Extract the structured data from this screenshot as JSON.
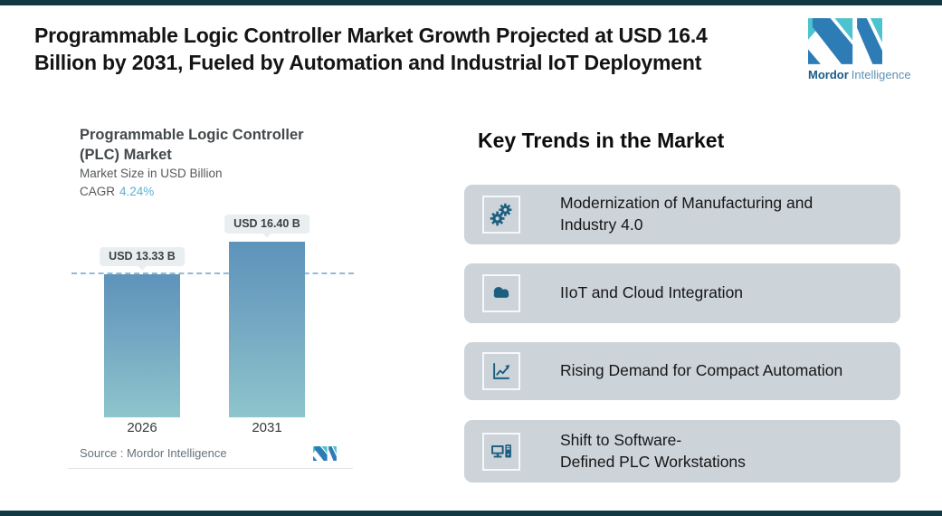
{
  "header": {
    "title": "Programmable Logic Controller Market Growth Projected at USD 16.4\nBillion by 2031, Fueled by Automation and Industrial IoT Deployment"
  },
  "brand": {
    "word_bold": "Mordor",
    "word_light": "Intelligence",
    "colors": {
      "blue": "#2e7cb5",
      "teal": "#4ec3d0"
    }
  },
  "chart": {
    "title": "Programmable Logic Controller\n(PLC) Market",
    "subtitle": "Market Size in USD Billion",
    "cagr_label": "CAGR",
    "cagr_value": "4.24%",
    "source": "Source :  Mordor Intelligence"
  },
  "chart_data": {
    "type": "bar",
    "title": "Programmable Logic Controller (PLC) Market",
    "subtitle": "Market Size in USD Billion",
    "cagr": "4.24%",
    "categories": [
      "2026",
      "2031"
    ],
    "values": [
      13.33,
      16.4
    ],
    "bar_labels": [
      "USD 13.33 B",
      "USD 16.40 B"
    ],
    "reference_line": 13.33,
    "unit": "USD Billion",
    "ylim": [
      0,
      16.4
    ],
    "grid": false,
    "legend": false,
    "bar_gradient_top": "#5e93bb",
    "bar_gradient_bottom": "#8ec5cc",
    "badge_bg": "#e9eff1",
    "dashed_line_color": "#93b9d9",
    "source": "Source :  Mordor Intelligence"
  },
  "trends": {
    "heading": "Key Trends in the Market",
    "card_bg": "#ccd3d9",
    "icon_color": "#1d5f80",
    "items": [
      {
        "icon": "gears-icon",
        "label": "Modernization of Manufacturing and\nIndustry 4.0"
      },
      {
        "icon": "cloud-icon",
        "label": "IIoT and Cloud Integration"
      },
      {
        "icon": "line-chart-icon",
        "label": "Rising Demand for Compact Automation"
      },
      {
        "icon": "workstation-icon",
        "label": "Shift to Software-\nDefined PLC Workstations"
      }
    ]
  }
}
